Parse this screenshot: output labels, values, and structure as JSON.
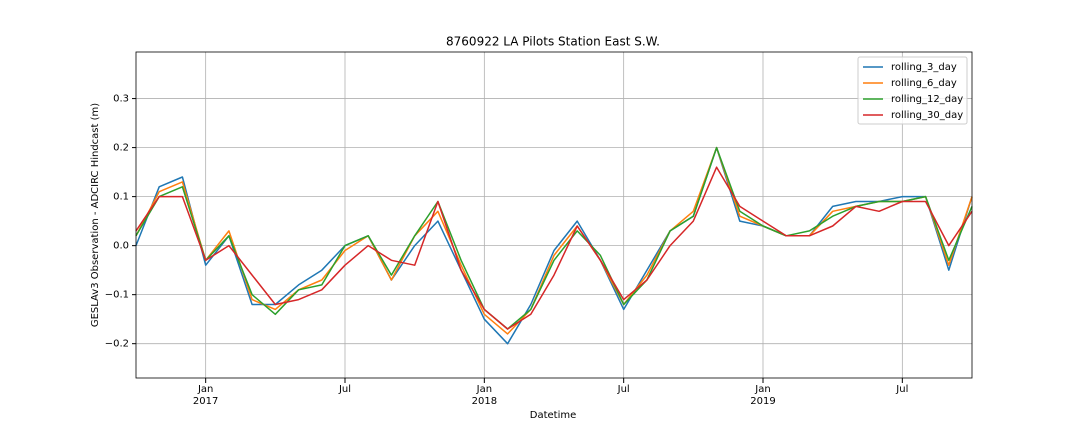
{
  "chart_data": {
    "type": "line",
    "title": "8760922 LA Pilots Station East S.W.",
    "xlabel": "Datetime",
    "ylabel": "GESLAv3 Observation - ADCIRC Hindcast (m)",
    "x": [
      "2016-10",
      "2016-11",
      "2016-12",
      "2017-01",
      "2017-02",
      "2017-03",
      "2017-04",
      "2017-05",
      "2017-06",
      "2017-07",
      "2017-08",
      "2017-09",
      "2017-10",
      "2017-11",
      "2017-12",
      "2018-01",
      "2018-02",
      "2018-03",
      "2018-04",
      "2018-05",
      "2018-06",
      "2018-07",
      "2018-08",
      "2018-09",
      "2018-10",
      "2018-11",
      "2018-12",
      "2019-01",
      "2019-02",
      "2019-03",
      "2019-04",
      "2019-05",
      "2019-06",
      "2019-07",
      "2019-08",
      "2019-09",
      "2019-10"
    ],
    "series": [
      {
        "name": "rolling_3_day",
        "color": "#1f77b4",
        "values": [
          0.0,
          0.12,
          0.14,
          -0.04,
          0.02,
          -0.12,
          -0.12,
          -0.08,
          -0.05,
          0.0,
          0.02,
          -0.07,
          0.0,
          0.05,
          -0.05,
          -0.15,
          -0.2,
          -0.12,
          -0.01,
          0.05,
          -0.03,
          -0.13,
          -0.05,
          0.03,
          0.06,
          0.2,
          0.05,
          0.04,
          0.02,
          0.02,
          0.08,
          0.09,
          0.09,
          0.1,
          0.1,
          -0.05,
          0.1
        ]
      },
      {
        "name": "rolling_6_day",
        "color": "#ff7f0e",
        "values": [
          0.02,
          0.11,
          0.13,
          -0.03,
          0.03,
          -0.11,
          -0.13,
          -0.09,
          -0.07,
          -0.01,
          0.02,
          -0.07,
          0.02,
          0.07,
          -0.04,
          -0.14,
          -0.18,
          -0.13,
          -0.02,
          0.04,
          -0.03,
          -0.12,
          -0.06,
          0.03,
          0.07,
          0.2,
          0.06,
          0.04,
          0.02,
          0.02,
          0.07,
          0.08,
          0.09,
          0.09,
          0.1,
          -0.04,
          0.1
        ]
      },
      {
        "name": "rolling_12_day",
        "color": "#2ca02c",
        "values": [
          0.02,
          0.1,
          0.12,
          -0.03,
          0.02,
          -0.1,
          -0.14,
          -0.09,
          -0.08,
          0.0,
          0.02,
          -0.06,
          0.02,
          0.09,
          -0.03,
          -0.13,
          -0.17,
          -0.13,
          -0.03,
          0.03,
          -0.02,
          -0.12,
          -0.07,
          0.03,
          0.06,
          0.2,
          0.07,
          0.04,
          0.02,
          0.03,
          0.06,
          0.08,
          0.09,
          0.09,
          0.1,
          -0.03,
          0.08
        ]
      },
      {
        "name": "rolling_30_day",
        "color": "#d62728",
        "values": [
          0.03,
          0.1,
          0.1,
          -0.03,
          0.0,
          -0.06,
          -0.12,
          -0.11,
          -0.09,
          -0.04,
          0.0,
          -0.03,
          -0.04,
          0.09,
          -0.05,
          -0.13,
          -0.17,
          -0.14,
          -0.06,
          0.04,
          -0.03,
          -0.11,
          -0.07,
          0.0,
          0.05,
          0.16,
          0.08,
          0.05,
          0.02,
          0.02,
          0.04,
          0.08,
          0.07,
          0.09,
          0.09,
          0.0,
          0.07
        ]
      }
    ],
    "xlim": [
      "2016-10",
      "2019-10"
    ],
    "xticks": [
      {
        "value": "2017-01",
        "label": "Jan\n2017"
      },
      {
        "value": "2017-07",
        "label": "Jul"
      },
      {
        "value": "2018-01",
        "label": "Jan\n2018"
      },
      {
        "value": "2018-07",
        "label": "Jul"
      },
      {
        "value": "2019-01",
        "label": "Jan\n2019"
      },
      {
        "value": "2019-07",
        "label": "Jul"
      }
    ],
    "ylim": [
      -0.27,
      0.395
    ],
    "yticks": [
      {
        "value": -0.2,
        "label": "−0.2"
      },
      {
        "value": -0.1,
        "label": "−0.1"
      },
      {
        "value": 0,
        "label": "0.0"
      },
      {
        "value": 0.1,
        "label": "0.1"
      },
      {
        "value": 0.2,
        "label": "0.2"
      },
      {
        "value": 0.3,
        "label": "0.3"
      }
    ],
    "grid": true,
    "legend": "upper right"
  }
}
